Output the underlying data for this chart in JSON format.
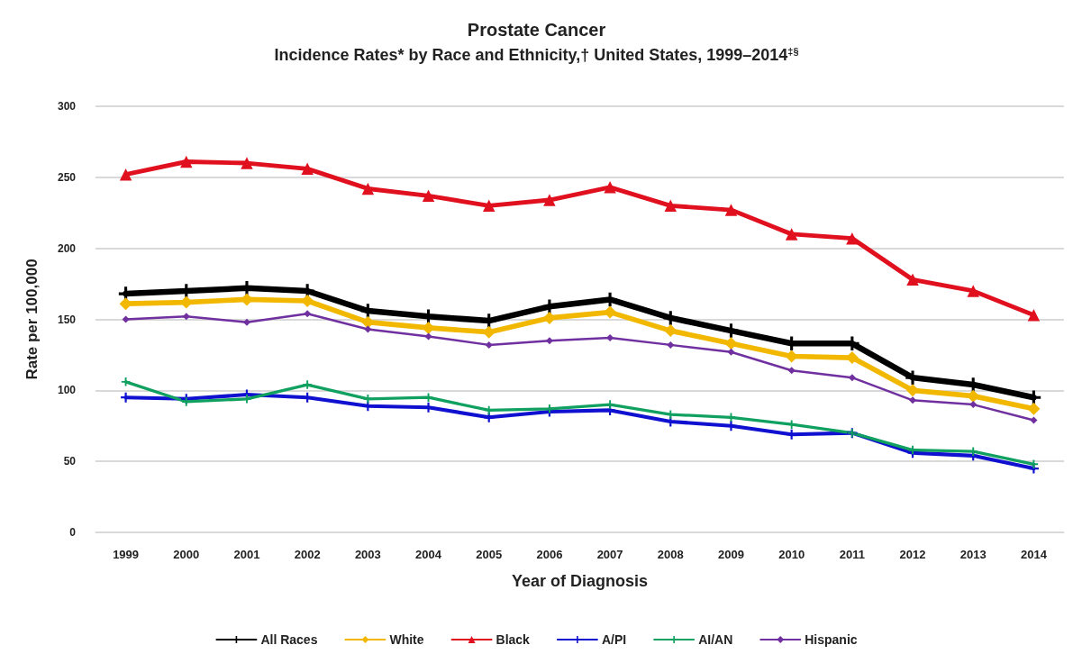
{
  "chart_data": {
    "type": "line",
    "title": "Prostate Cancer",
    "subtitle": "Incidence Rates* by Race and Ethnicity,† United States, 1999–2014$^{‡§}$",
    "xlabel": "Year of Diagnosis",
    "ylabel": "Rate per 100,000",
    "categories": [
      "1999",
      "2000",
      "2001",
      "2002",
      "2003",
      "2004",
      "2005",
      "2006",
      "2007",
      "2008",
      "2009",
      "2010",
      "2011",
      "2012",
      "2013",
      "2014"
    ],
    "series": [
      {
        "name": "All Races",
        "color": "#000000",
        "marker": "cross",
        "values": [
          168,
          170,
          172,
          170,
          156,
          152,
          149,
          159,
          164,
          151,
          142,
          133,
          133,
          109,
          104,
          95
        ]
      },
      {
        "name": "White",
        "color": "#f2b800",
        "marker": "diamond",
        "values": [
          161,
          162,
          164,
          163,
          148,
          144,
          141,
          151,
          155,
          142,
          133,
          124,
          123,
          100,
          96,
          87
        ]
      },
      {
        "name": "Black",
        "color": "#e0101e",
        "marker": "triangle",
        "values": [
          252,
          261,
          260,
          256,
          242,
          237,
          230,
          234,
          243,
          230,
          227,
          210,
          207,
          178,
          170,
          153
        ]
      },
      {
        "name": "A/PI",
        "color": "#1010d0",
        "marker": "cross",
        "values": [
          95,
          94,
          97,
          95,
          89,
          88,
          81,
          85,
          86,
          78,
          75,
          69,
          70,
          56,
          54,
          45
        ]
      },
      {
        "name": "AI/AN",
        "color": "#10a060",
        "marker": "cross",
        "values": [
          106,
          92,
          94,
          104,
          94,
          95,
          86,
          87,
          90,
          83,
          81,
          76,
          70,
          58,
          57,
          48
        ]
      },
      {
        "name": "Hispanic",
        "color": "#7030a0",
        "marker": "diamond",
        "values": [
          150,
          152,
          148,
          154,
          143,
          138,
          132,
          135,
          137,
          132,
          127,
          114,
          109,
          93,
          90,
          79
        ]
      }
    ],
    "ylim": [
      0,
      300
    ],
    "yticks": [
      0,
      50,
      100,
      150,
      200,
      250,
      300
    ],
    "grid": "y",
    "legend": "bottom",
    "line_style": "solid"
  }
}
